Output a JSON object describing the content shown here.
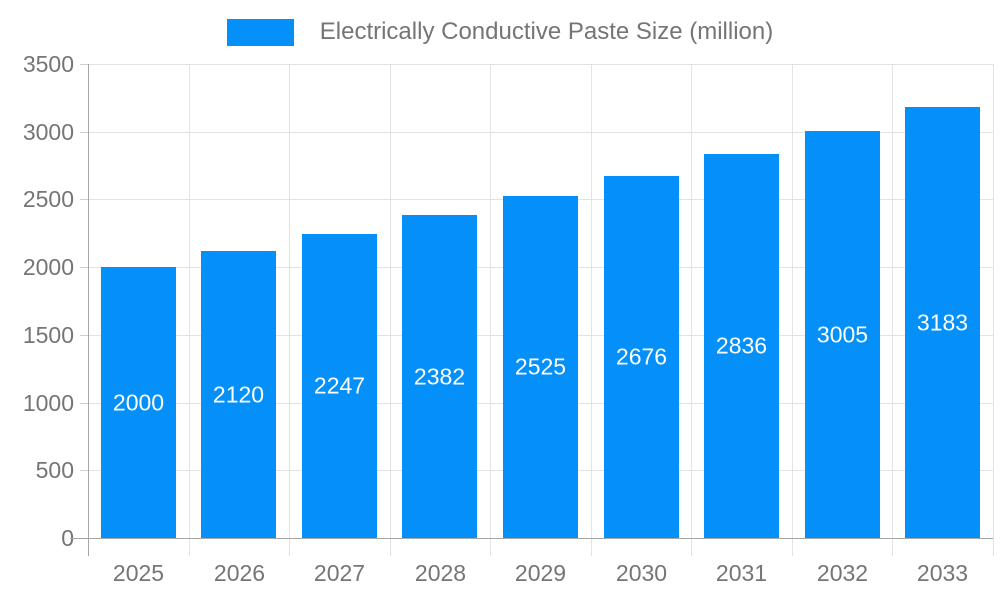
{
  "legend": {
    "label": "Electrically Conductive Paste Size (million)"
  },
  "chart_data": {
    "type": "bar",
    "title": "Electrically Conductive Paste Size (million)",
    "series_name": "Electrically Conductive Paste Size (million)",
    "categories": [
      "2025",
      "2026",
      "2027",
      "2028",
      "2029",
      "2030",
      "2031",
      "2032",
      "2033"
    ],
    "values": [
      2000,
      2120,
      2247,
      2382,
      2525,
      2676,
      2836,
      3005,
      3183
    ],
    "xlabel": "",
    "ylabel": "",
    "ylim": [
      0,
      3500
    ],
    "yticks": [
      0,
      500,
      1000,
      1500,
      2000,
      2500,
      3000,
      3500
    ],
    "grid": "horizontal+vertical",
    "legend_position": "top-center",
    "value_labels": "inside-center-white"
  },
  "colors": {
    "bar": "#0490f8",
    "bar_label": "#ffffff",
    "axis_text": "#757575",
    "legend_text": "#757575",
    "grid_line": "#e3e3e3",
    "axis_line": "#a6a6a6",
    "tick": "#d0d0d0",
    "background": "#ffffff"
  }
}
